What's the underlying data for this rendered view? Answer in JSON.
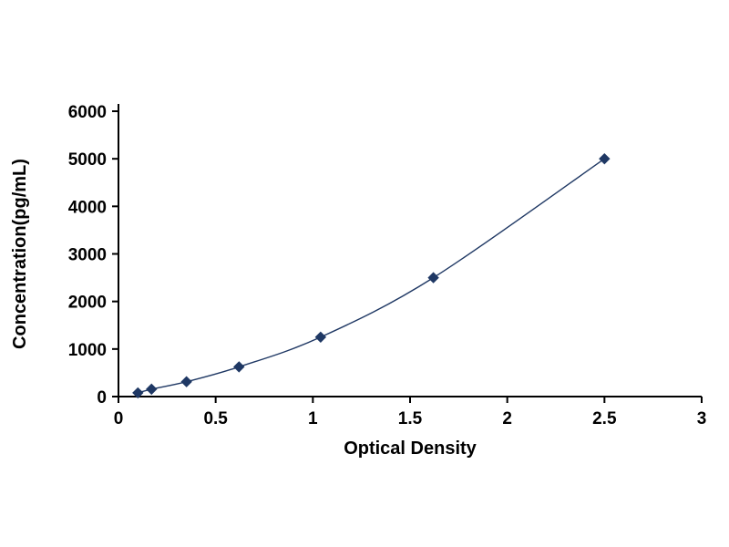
{
  "chart_data": {
    "type": "line",
    "title": "",
    "xlabel": "Optical Density",
    "ylabel": "Concentration(pg/mL)",
    "x": [
      0.1,
      0.17,
      0.35,
      0.62,
      1.04,
      1.62,
      2.5
    ],
    "y": [
      78,
      156,
      312,
      625,
      1250,
      2500,
      5000
    ],
    "xlim": [
      0,
      3
    ],
    "ylim": [
      0,
      6000
    ],
    "xticks": [
      0,
      0.5,
      1,
      1.5,
      2,
      2.5,
      3
    ],
    "xtick_labels": [
      "0",
      "0.5",
      "1",
      "1.5",
      "2",
      "2.5",
      "3"
    ],
    "yticks": [
      0,
      1000,
      2000,
      3000,
      4000,
      5000,
      6000
    ],
    "ytick_labels": [
      "0",
      "1000",
      "2000",
      "3000",
      "4000",
      "5000",
      "6000"
    ],
    "grid": false,
    "legend": null,
    "marker": "diamond",
    "line_color": "#1F3864",
    "marker_color": "#1F3864",
    "axis_color": "#000000",
    "text_color": "#000000"
  }
}
